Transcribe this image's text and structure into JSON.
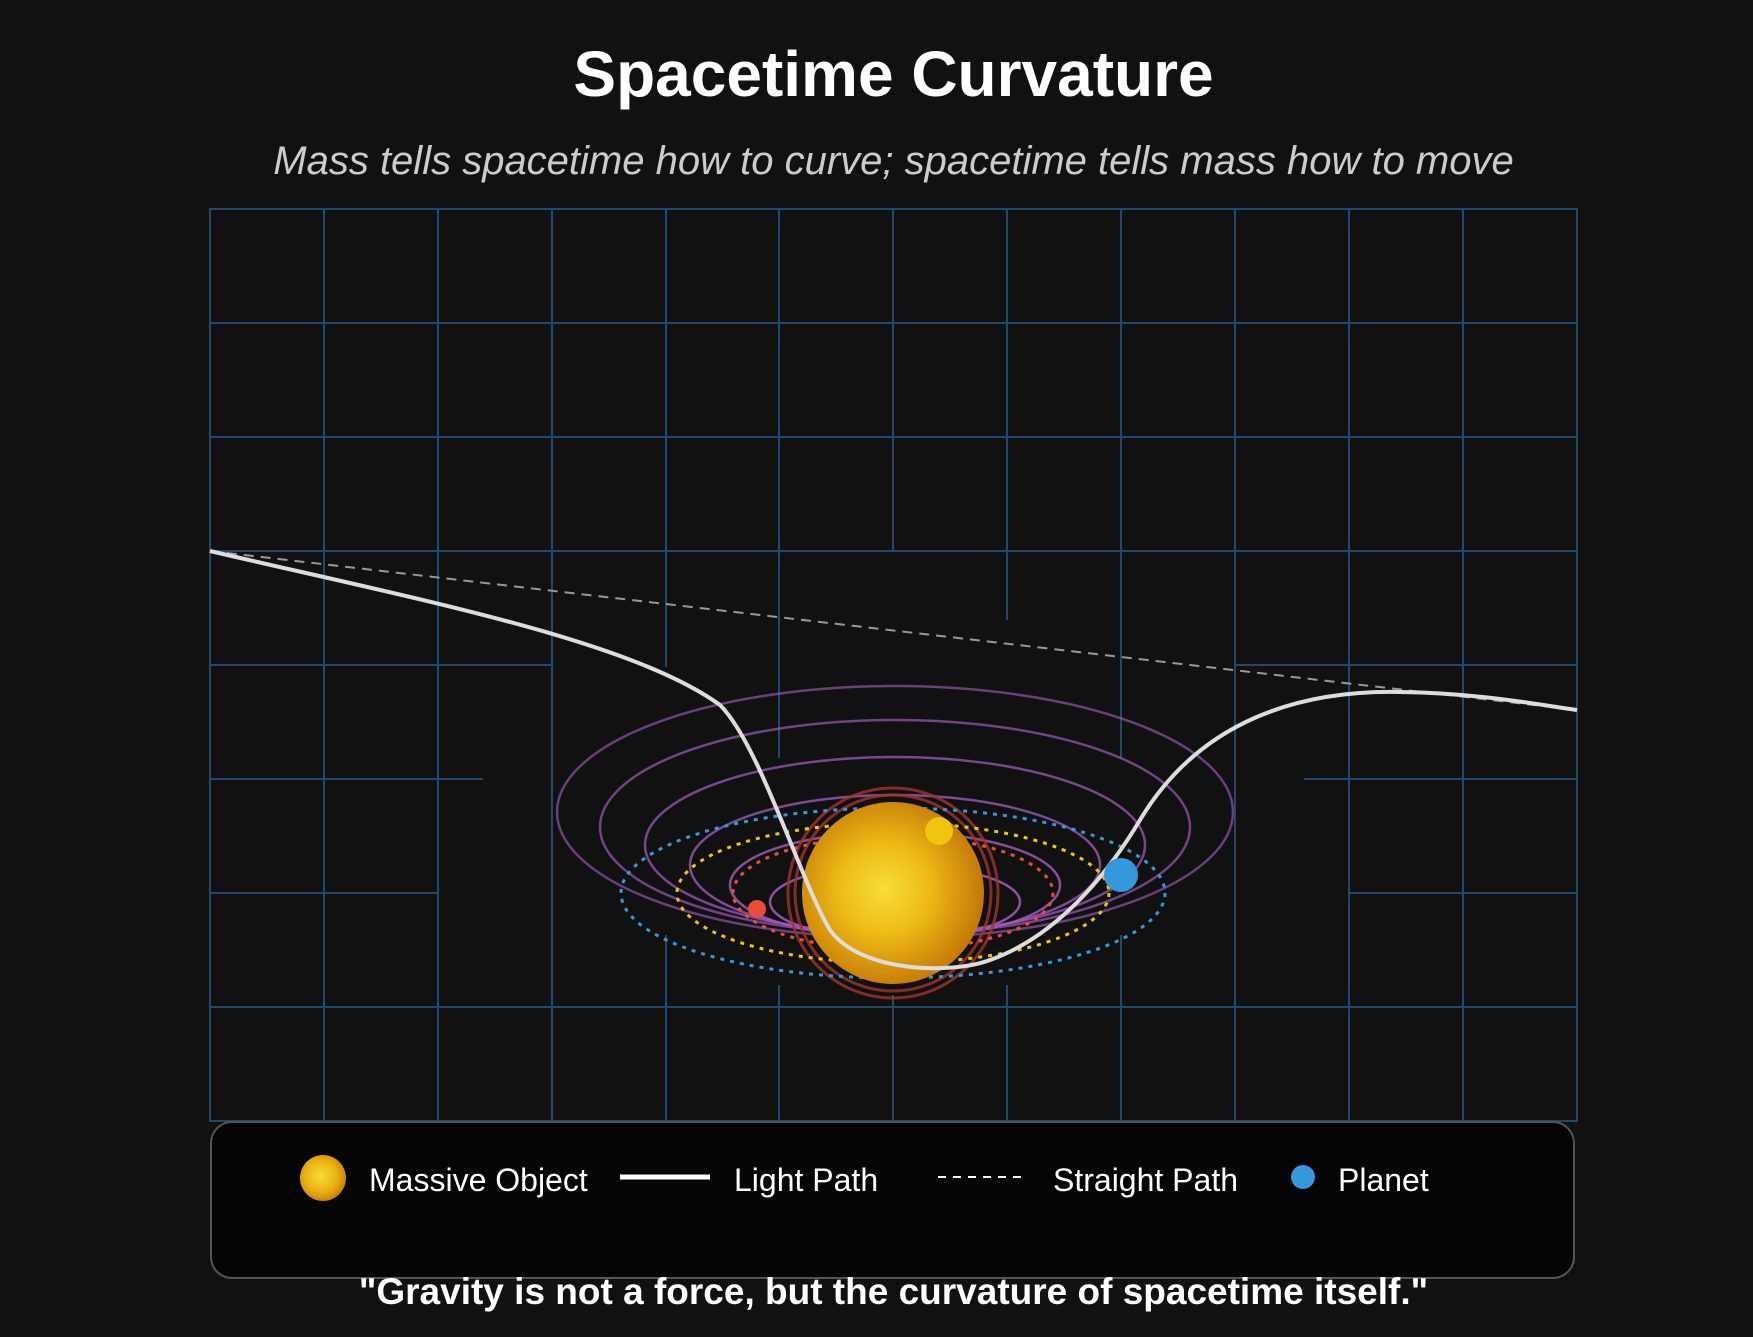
{
  "title": "Spacetime Curvature",
  "subtitle": "Mass tells spacetime how to curve; spacetime tells mass how to move",
  "legend": {
    "massive_object": "Massive Object",
    "light_path": "Light Path",
    "straight_path": "Straight Path",
    "planet": "Planet"
  },
  "quote": "\"Gravity is not a force, but the curvature of spacetime itself.\"",
  "colors": {
    "background": "#111111",
    "grid": "#1f4a6e",
    "well": "#9b59b6",
    "star": "#f1b40f",
    "light_path": "#dddddd",
    "planet_blue": "#3498db",
    "planet_yellow": "#f1c40f",
    "planet_red": "#e74c3c"
  }
}
